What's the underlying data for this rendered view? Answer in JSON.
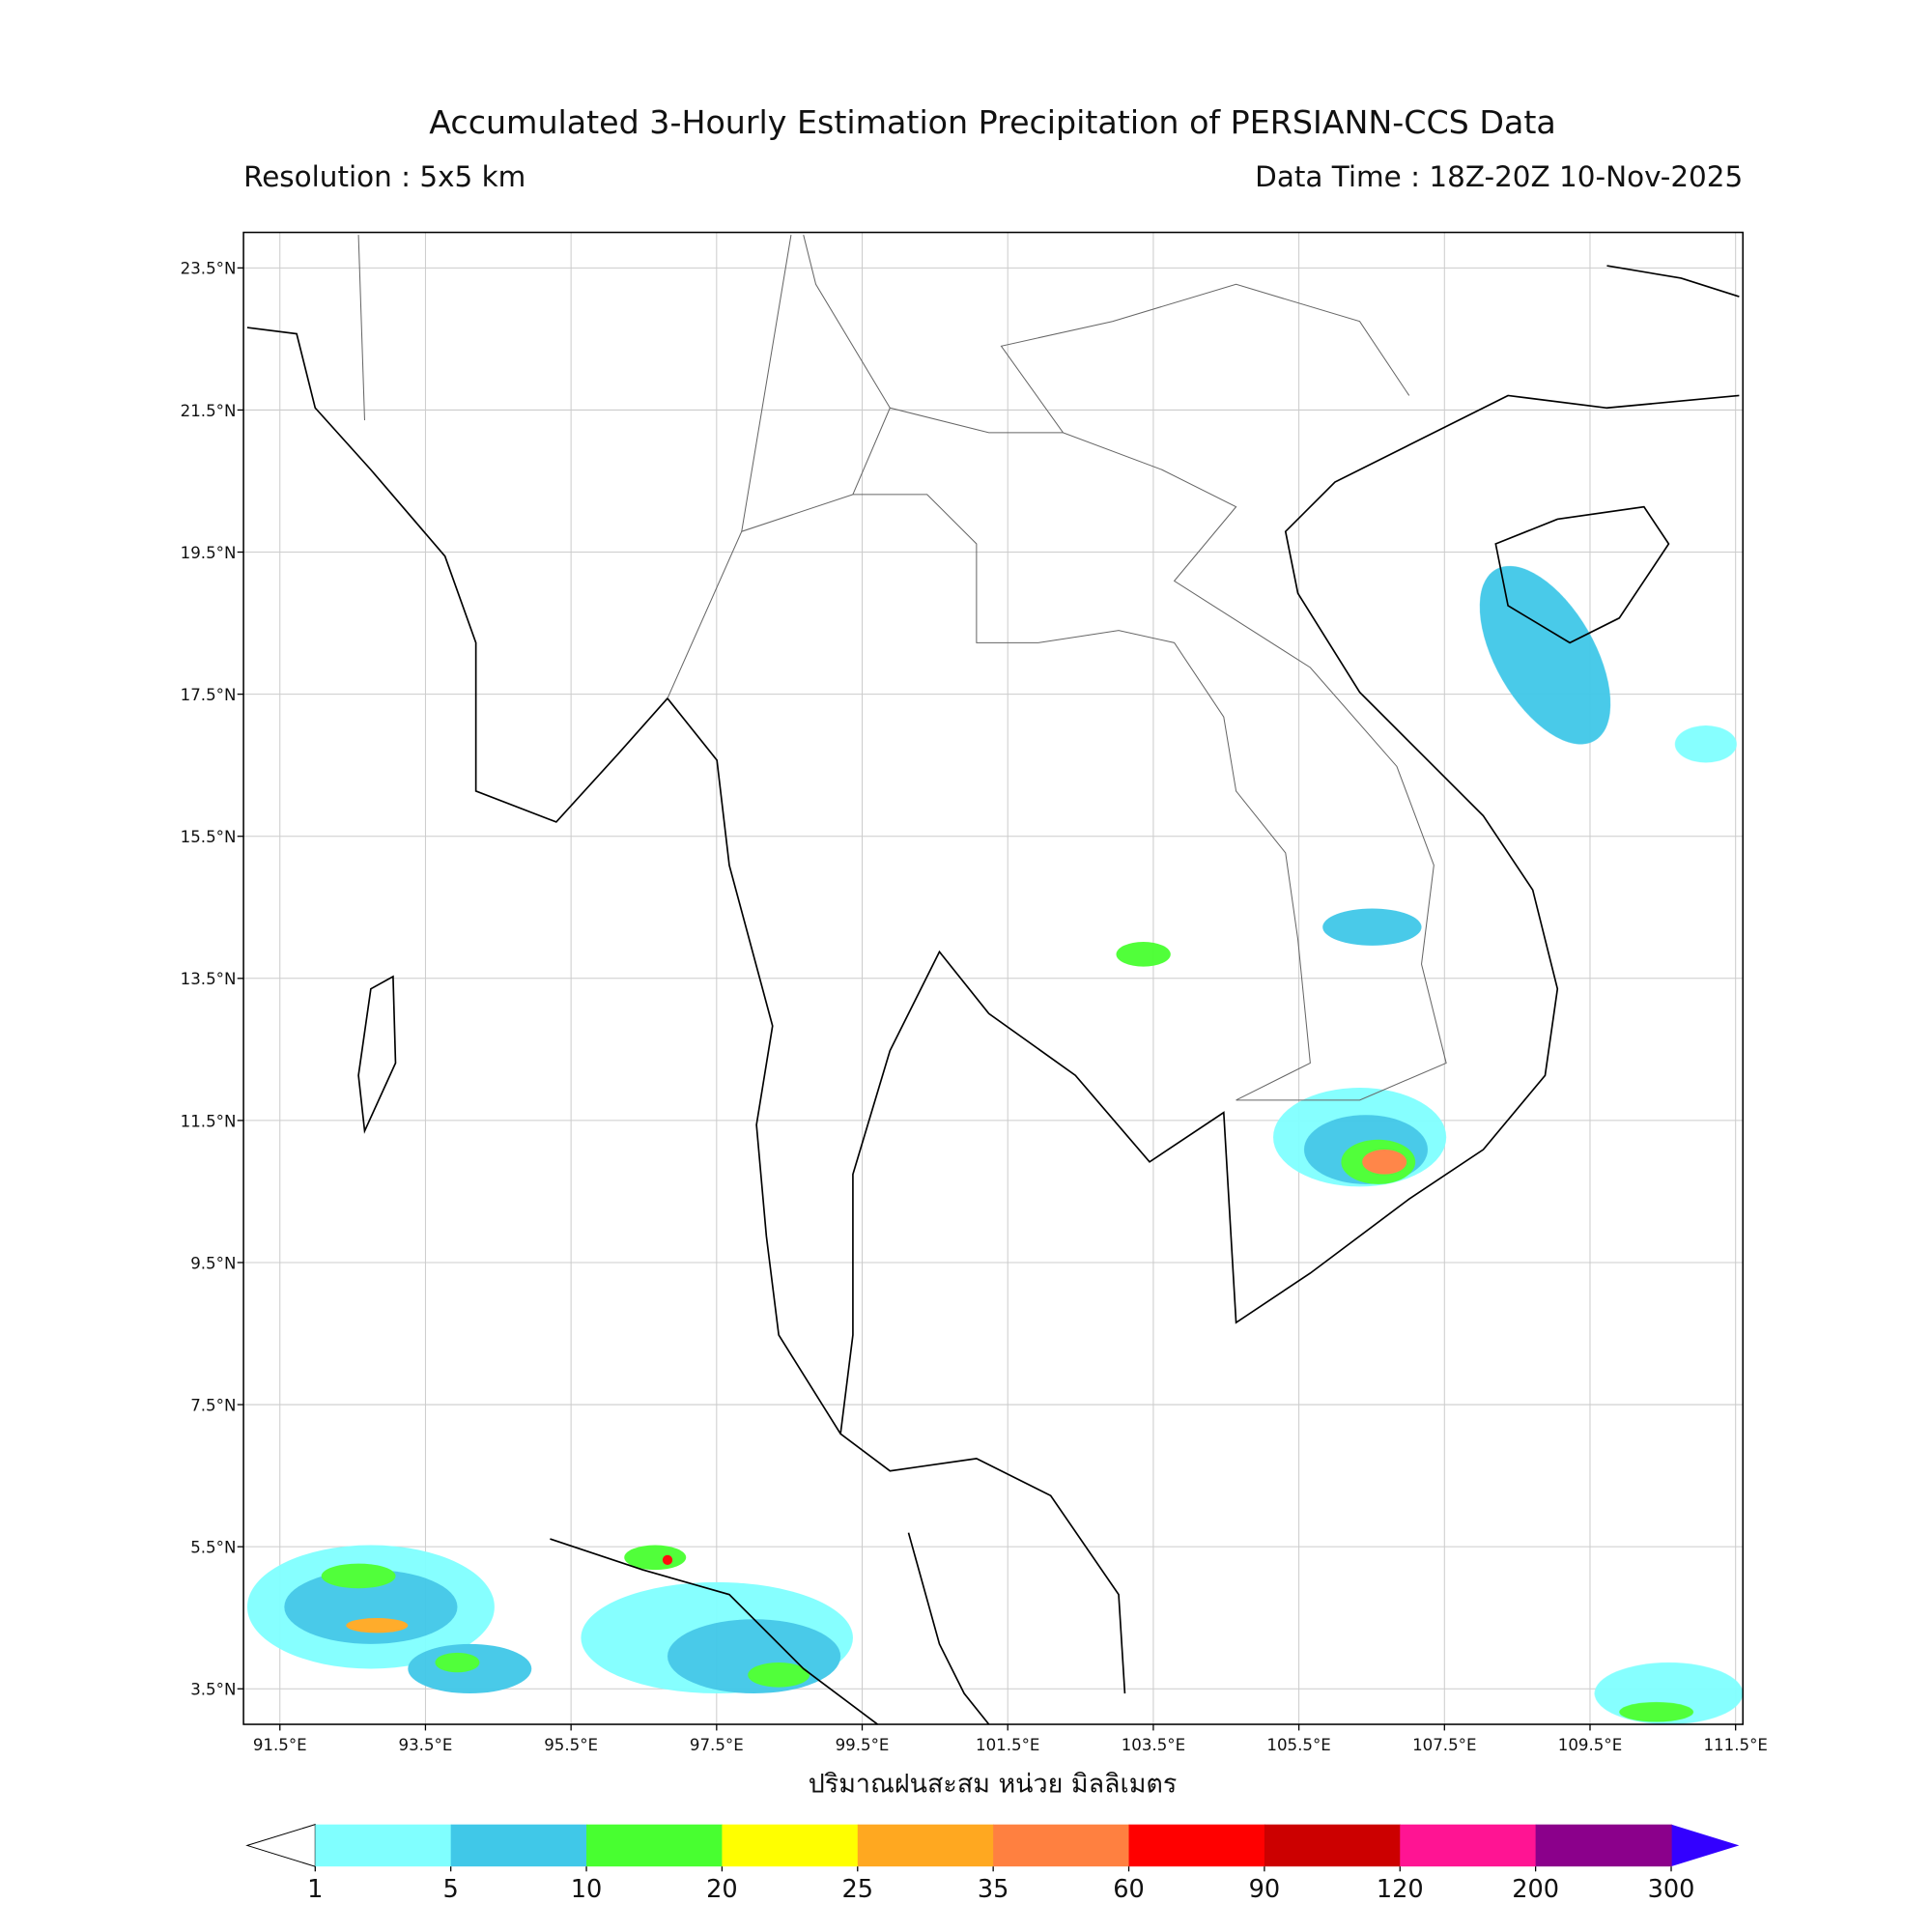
{
  "header": {
    "title": "Accumulated 3-Hourly Estimation Precipitation of PERSIANN-CCS Data",
    "resolution": "Resolution : 5x5 km",
    "data_time": "Data Time : 18Z-20Z 10-Nov-2025"
  },
  "map": {
    "xlim": [
      91,
      111.6
    ],
    "ylim": [
      3,
      24
    ],
    "xticks": [
      {
        "value": 91.5,
        "label": "91.5°E"
      },
      {
        "value": 93.5,
        "label": "93.5°E"
      },
      {
        "value": 95.5,
        "label": "95.5°E"
      },
      {
        "value": 97.5,
        "label": "97.5°E"
      },
      {
        "value": 99.5,
        "label": "99.5°E"
      },
      {
        "value": 101.5,
        "label": "101.5°E"
      },
      {
        "value": 103.5,
        "label": "103.5°E"
      },
      {
        "value": 105.5,
        "label": "105.5°E"
      },
      {
        "value": 107.5,
        "label": "107.5°E"
      },
      {
        "value": 109.5,
        "label": "109.5°E"
      },
      {
        "value": 111.5,
        "label": "111.5°E"
      }
    ],
    "yticks": [
      {
        "value": 3.5,
        "label": "3.5°N"
      },
      {
        "value": 5.5,
        "label": "5.5°N"
      },
      {
        "value": 7.5,
        "label": "7.5°N"
      },
      {
        "value": 9.5,
        "label": "9.5°N"
      },
      {
        "value": 11.5,
        "label": "11.5°N"
      },
      {
        "value": 13.5,
        "label": "13.5°N"
      },
      {
        "value": 15.5,
        "label": "15.5°N"
      },
      {
        "value": 17.5,
        "label": "17.5°N"
      },
      {
        "value": 19.5,
        "label": "19.5°N"
      },
      {
        "value": 21.5,
        "label": "21.5°N"
      },
      {
        "value": 23.5,
        "label": "23.5°N"
      }
    ],
    "grid": true,
    "xlabel": "ปริมาณฝนสะสม หน่วย มิลลิเมตร"
  },
  "colorbar": {
    "levels": [
      1,
      5,
      10,
      20,
      25,
      35,
      60,
      90,
      120,
      200,
      300
    ],
    "colors": [
      "#80ffff",
      "#40c8e8",
      "#48ff30",
      "#ffff00",
      "#ffa820",
      "#ff8040",
      "#ff0000",
      "#cc0000",
      "#ff1493",
      "#8b008b"
    ],
    "under_color": "#ffffff",
    "over_color": "#3300ff"
  }
}
